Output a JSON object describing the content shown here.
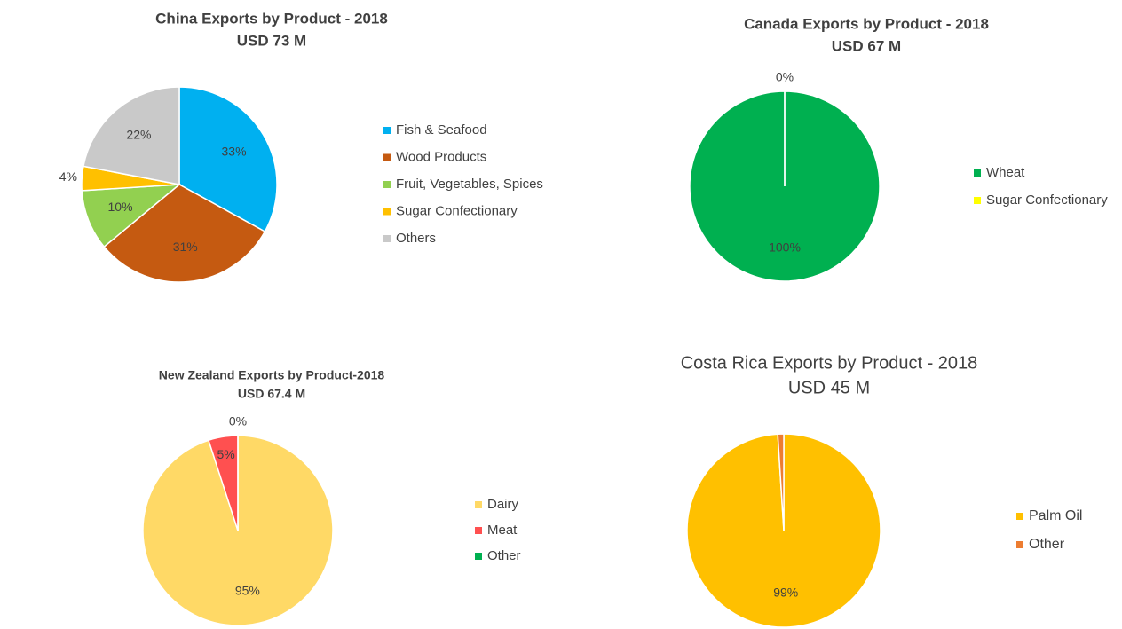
{
  "chart_data": [
    {
      "type": "pie",
      "title": "China Exports by Product - 2018",
      "subtitle": "USD 73 M",
      "categories": [
        "Fish & Seafood",
        "Wood Products",
        "Fruit, Vegetables, Spices",
        "Sugar Confectionary",
        "Others"
      ],
      "values": [
        33,
        31,
        10,
        4,
        22
      ],
      "value_labels": [
        "33%",
        "31%",
        "10%",
        "4%",
        "22%"
      ],
      "colors": [
        "#00b0f0",
        "#c55a11",
        "#92d050",
        "#ffc000",
        "#c9c9c9"
      ]
    },
    {
      "type": "pie",
      "title": "Canada Exports by Product - 2018",
      "subtitle": "USD 67 M",
      "categories": [
        "Wheat",
        "Sugar Confectionary"
      ],
      "values": [
        100,
        0
      ],
      "value_labels": [
        "100%",
        "0%"
      ],
      "colors": [
        "#00b050",
        "#ffff00"
      ]
    },
    {
      "type": "pie",
      "title": "New Zealand Exports by Product-2018",
      "subtitle": "USD 67.4 M",
      "categories": [
        "Dairy",
        "Meat",
        "Other"
      ],
      "values": [
        95,
        5,
        0
      ],
      "value_labels": [
        "95%",
        "5%",
        "0%"
      ],
      "colors": [
        "#ffd966",
        "#ff5050",
        "#00b050"
      ]
    },
    {
      "type": "pie",
      "title": "Costa Rica Exports by Product - 2018",
      "subtitle": "USD 45 M",
      "categories": [
        "Palm Oil",
        "Other"
      ],
      "values": [
        99,
        1
      ],
      "value_labels": [
        "99%",
        null
      ],
      "colors": [
        "#ffc000",
        "#ed7d31"
      ]
    }
  ]
}
